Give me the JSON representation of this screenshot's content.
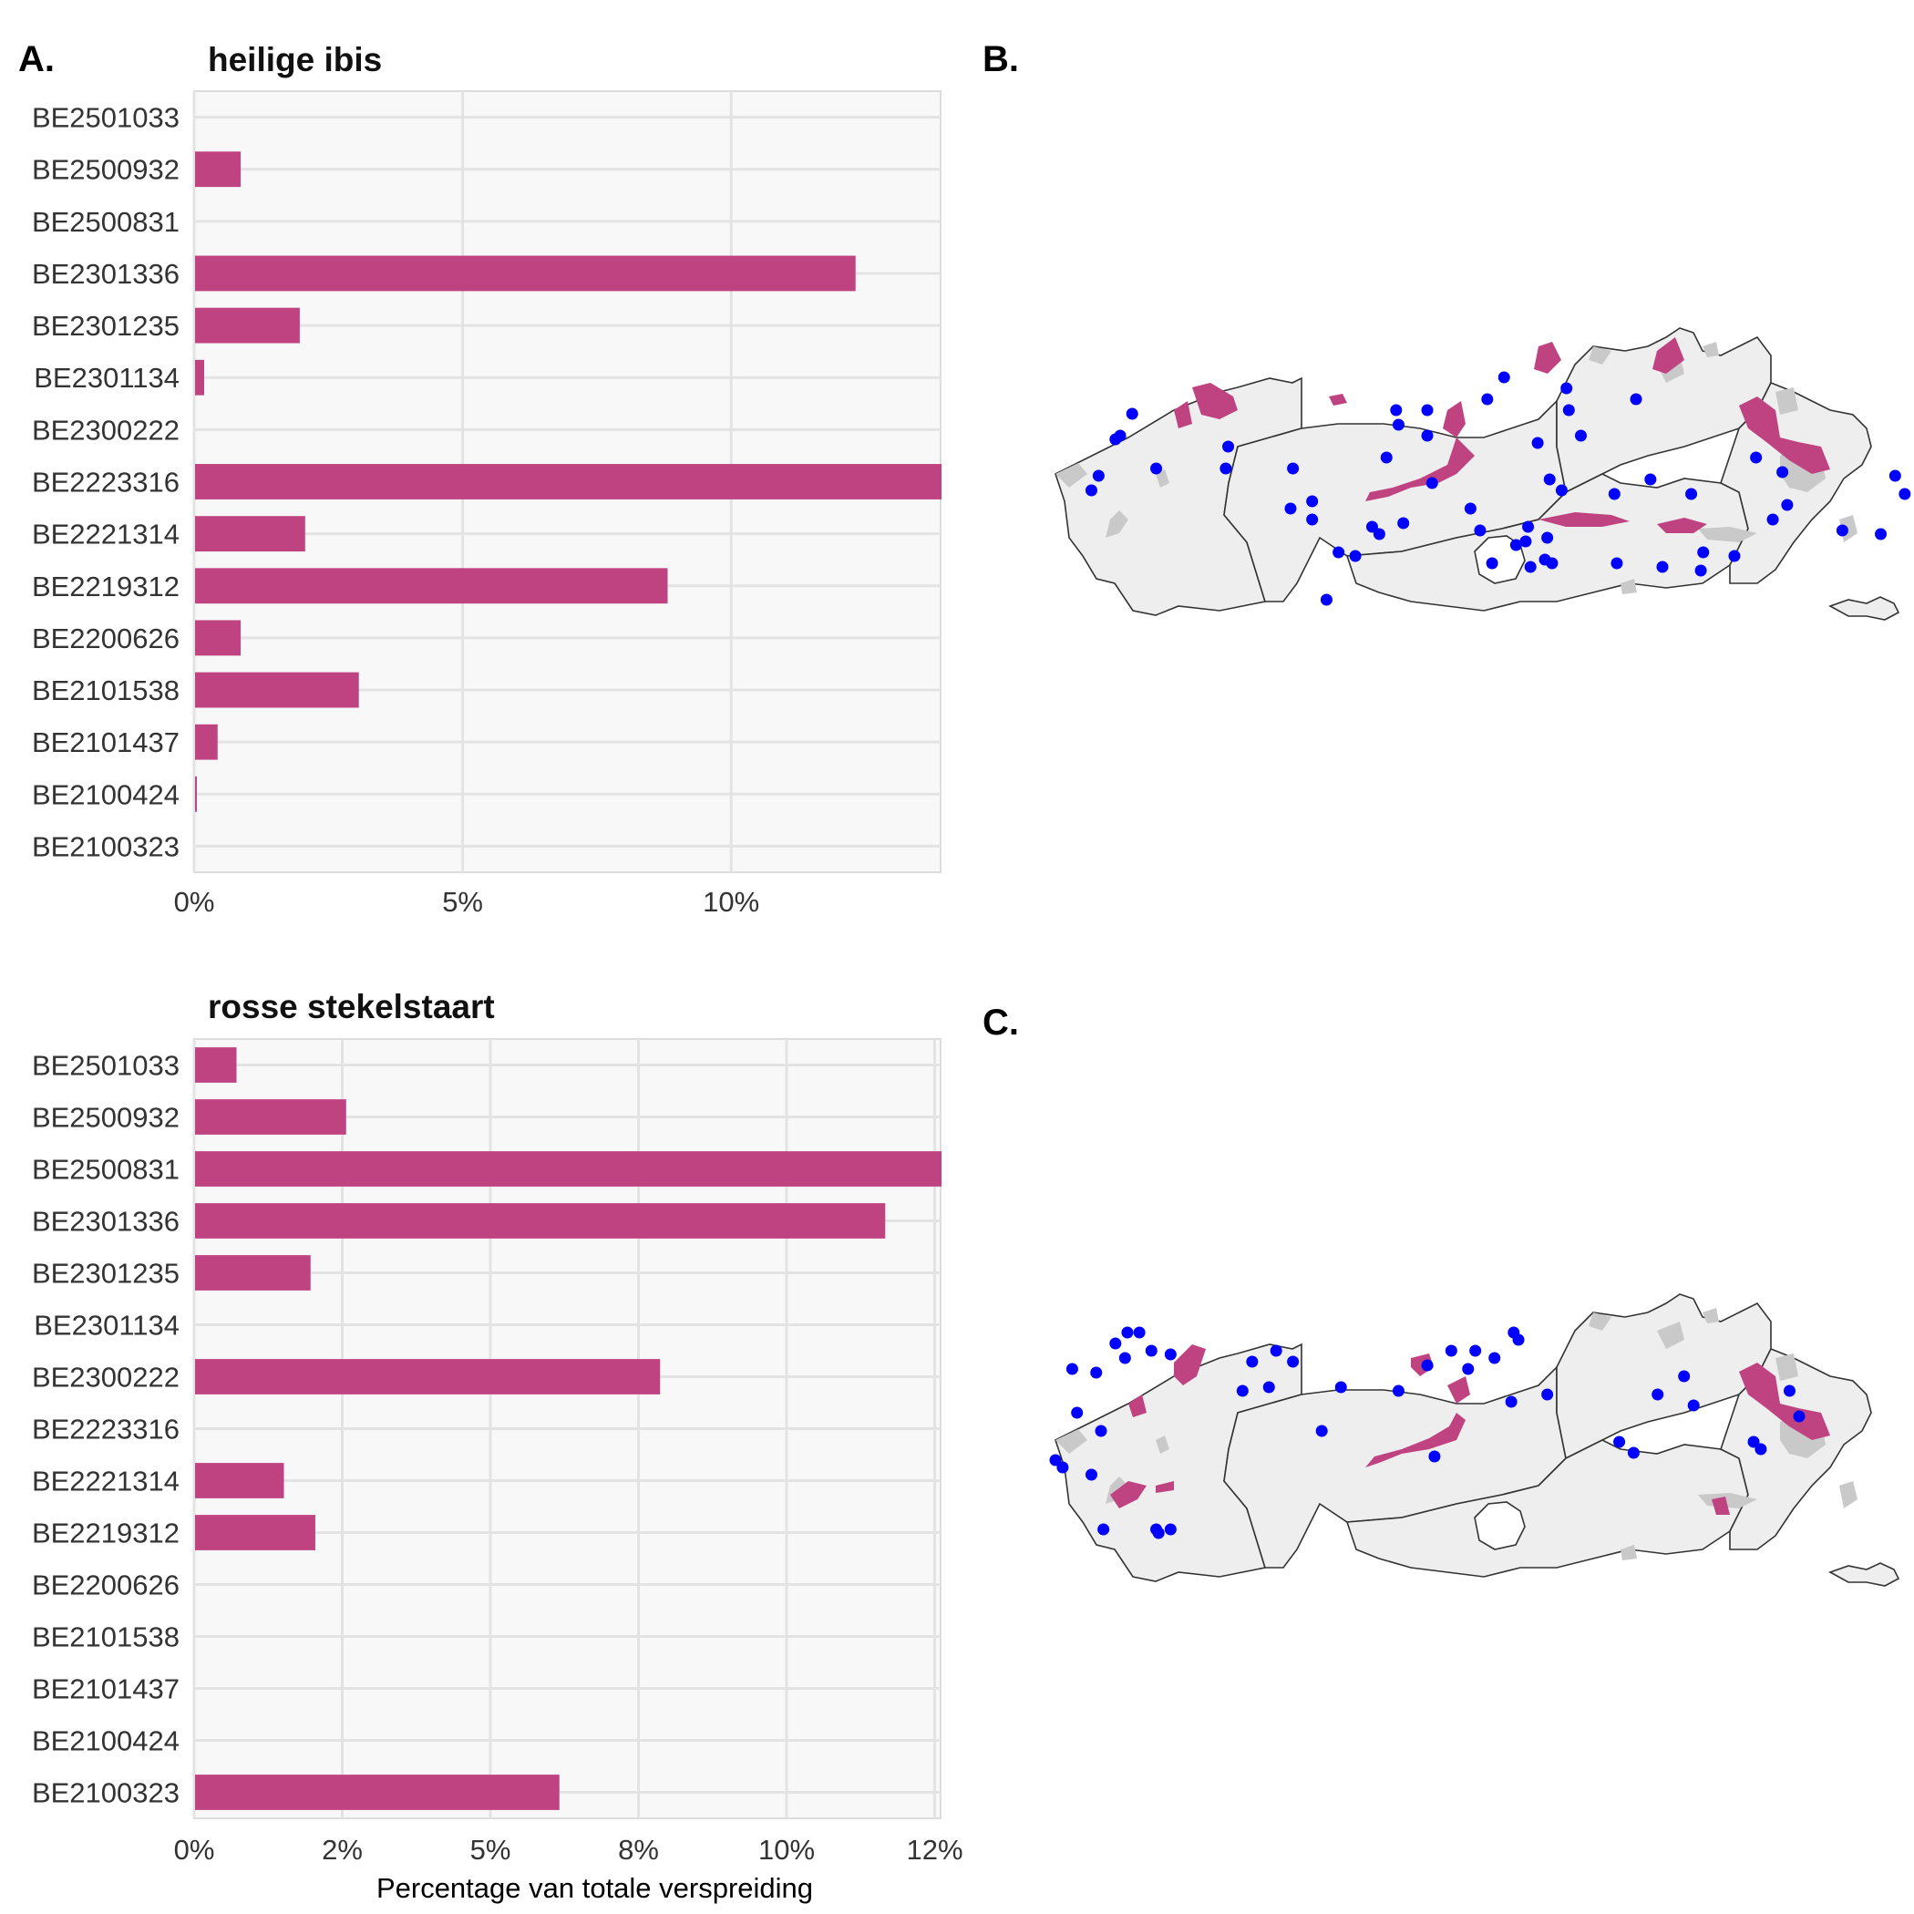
{
  "panel_labels": {
    "a": "A.",
    "b": "B.",
    "c": "C."
  },
  "colors": {
    "bar": "#c04381",
    "points": "#0000ff",
    "region": "#eeeeee",
    "wetland": "#c9c9c9"
  },
  "chart_data": [
    {
      "type": "bar",
      "orientation": "horizontal",
      "title": "heilige ibis",
      "xlabel": "",
      "categories": [
        "BE2501033",
        "BE2500932",
        "BE2500831",
        "BE2301336",
        "BE2301235",
        "BE2301134",
        "BE2300222",
        "BE2223316",
        "BE2221314",
        "BE2219312",
        "BE2200626",
        "BE2101538",
        "BE2101437",
        "BE2100424",
        "BE2100323"
      ],
      "values": [
        0,
        0.85,
        0,
        12.3,
        1.95,
        0.17,
        0,
        13.9,
        2.05,
        8.8,
        0.85,
        3.05,
        0.42,
        0.03,
        0
      ],
      "xlim": [
        0,
        13.9
      ],
      "xticks": [
        0,
        5,
        10
      ],
      "xtick_labels": [
        "0%",
        "5%",
        "10%"
      ]
    },
    {
      "type": "bar",
      "orientation": "horizontal",
      "title": "rosse stekelstaart",
      "xlabel": "Percentage van totale verspreiding",
      "categories": [
        "BE2501033",
        "BE2500932",
        "BE2500831",
        "BE2301336",
        "BE2301235",
        "BE2301134",
        "BE2300222",
        "BE2223316",
        "BE2221314",
        "BE2219312",
        "BE2200626",
        "BE2101538",
        "BE2101437",
        "BE2100424",
        "BE2100323"
      ],
      "values": [
        0.7,
        2.55,
        12.6,
        11.65,
        1.95,
        0,
        7.85,
        0,
        1.5,
        2.03,
        0,
        0,
        0,
        0,
        6.15
      ],
      "xlim": [
        0,
        12.6
      ],
      "xticks": [
        0,
        2.5,
        5,
        7.5,
        10,
        12.5
      ],
      "xtick_labels": [
        "0%",
        "2%",
        "5%",
        "8%",
        "10%",
        "12%"
      ]
    }
  ],
  "maps": [
    {
      "name": "heilige ibis",
      "points_lonlat_approx": [
        [
          2.87,
          51.24
        ],
        [
          2.82,
          51.18
        ],
        [
          2.8,
          51.17
        ],
        [
          2.73,
          51.07
        ],
        [
          2.7,
          51.03
        ],
        [
          2.97,
          51.09
        ],
        [
          3.27,
          51.15
        ],
        [
          3.54,
          51.09
        ],
        [
          3.53,
          50.98
        ],
        [
          3.62,
          51.0
        ],
        [
          3.62,
          50.95
        ],
        [
          3.73,
          50.86
        ],
        [
          3.87,
          50.93
        ],
        [
          3.9,
          50.91
        ],
        [
          3.93,
          51.12
        ],
        [
          3.98,
          51.21
        ],
        [
          3.97,
          51.25
        ],
        [
          4.1,
          51.18
        ],
        [
          4.12,
          51.05
        ],
        [
          4.42,
          51.34
        ],
        [
          4.68,
          51.31
        ],
        [
          4.69,
          51.25
        ],
        [
          4.74,
          51.18
        ],
        [
          4.88,
          51.02
        ],
        [
          5.03,
          51.06
        ],
        [
          5.2,
          51.02
        ],
        [
          5.47,
          51.12
        ],
        [
          5.58,
          51.08
        ],
        [
          5.6,
          50.99
        ],
        [
          5.54,
          50.95
        ],
        [
          5.38,
          50.85
        ],
        [
          5.83,
          50.92
        ],
        [
          5.99,
          50.91
        ],
        [
          6.09,
          51.02
        ],
        [
          6.05,
          51.07
        ],
        [
          4.61,
          51.06
        ],
        [
          4.66,
          51.03
        ],
        [
          4.52,
          50.93
        ],
        [
          4.51,
          50.89
        ],
        [
          4.62,
          50.83
        ],
        [
          4.56,
          51.16
        ],
        [
          4.28,
          50.98
        ],
        [
          4.32,
          50.92
        ],
        [
          4.0,
          50.94
        ],
        [
          3.8,
          50.85
        ],
        [
          3.68,
          50.73
        ],
        [
          4.97,
          51.28
        ],
        [
          4.1,
          51.25
        ],
        [
          4.35,
          51.28
        ],
        [
          3.26,
          51.09
        ],
        [
          4.89,
          50.83
        ],
        [
          5.08,
          50.82
        ],
        [
          5.25,
          50.86
        ],
        [
          5.24,
          50.81
        ],
        [
          4.53,
          50.82
        ],
        [
          4.47,
          50.88
        ],
        [
          4.6,
          50.9
        ],
        [
          4.37,
          50.83
        ],
        [
          4.59,
          50.84
        ]
      ]
    },
    {
      "name": "rosse stekelstaart",
      "points_lonlat_approx": [
        [
          2.7,
          50.98
        ],
        [
          2.55,
          51.02
        ],
        [
          2.58,
          51.0
        ],
        [
          2.74,
          51.1
        ],
        [
          2.64,
          51.15
        ],
        [
          2.62,
          51.27
        ],
        [
          2.72,
          51.26
        ],
        [
          2.8,
          51.34
        ],
        [
          2.85,
          51.37
        ],
        [
          2.9,
          51.37
        ],
        [
          2.84,
          51.3
        ],
        [
          2.95,
          51.32
        ],
        [
          3.03,
          51.31
        ],
        [
          3.37,
          51.29
        ],
        [
          3.47,
          51.32
        ],
        [
          3.54,
          51.29
        ],
        [
          3.44,
          51.22
        ],
        [
          3.33,
          51.21
        ],
        [
          3.74,
          51.22
        ],
        [
          3.66,
          51.1
        ],
        [
          3.98,
          51.21
        ],
        [
          4.1,
          51.28
        ],
        [
          4.2,
          51.32
        ],
        [
          4.3,
          51.32
        ],
        [
          4.38,
          51.3
        ],
        [
          4.27,
          51.27
        ],
        [
          4.6,
          51.2
        ],
        [
          4.9,
          51.07
        ],
        [
          4.96,
          51.04
        ],
        [
          5.06,
          51.2
        ],
        [
          5.17,
          51.25
        ],
        [
          5.21,
          51.17
        ],
        [
          5.46,
          51.07
        ],
        [
          5.49,
          51.05
        ],
        [
          5.61,
          51.21
        ],
        [
          5.65,
          51.14
        ],
        [
          4.13,
          51.03
        ],
        [
          4.45,
          51.18
        ],
        [
          4.46,
          51.37
        ],
        [
          4.48,
          51.35
        ],
        [
          2.75,
          50.83
        ],
        [
          3.03,
          50.83
        ],
        [
          2.97,
          50.83
        ],
        [
          2.98,
          50.82
        ]
      ]
    }
  ]
}
